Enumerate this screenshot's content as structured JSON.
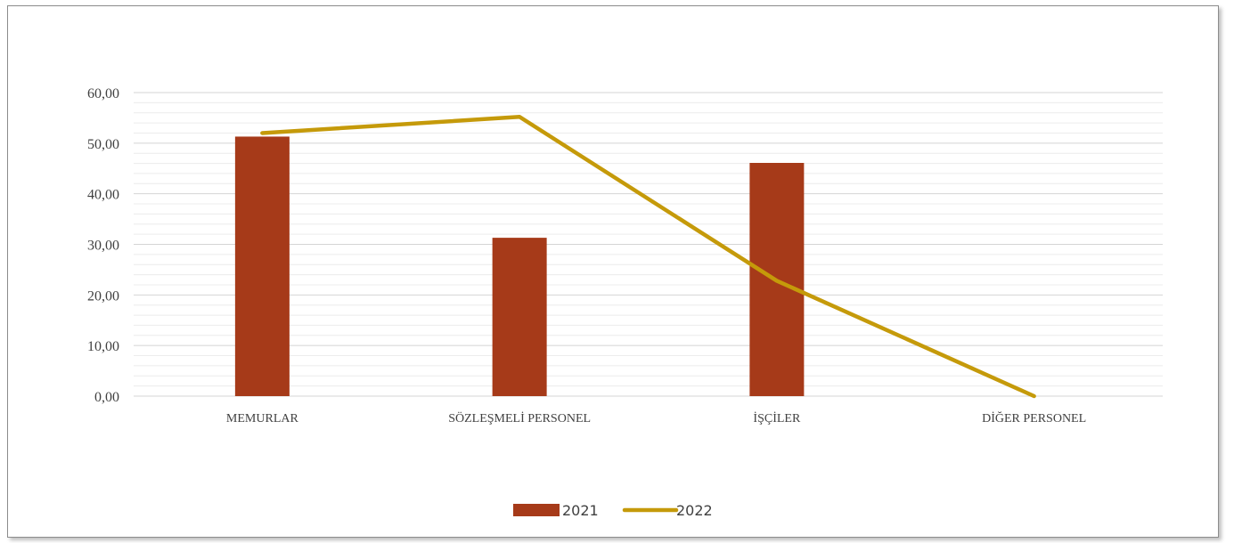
{
  "chart_data": {
    "type": "bar",
    "categories": [
      "MEMURLAR",
      "SÖZLEŞMELİ PERSONEL",
      "İŞÇİLER",
      "DİĞER PERSONEL"
    ],
    "series": [
      {
        "name": "2021",
        "kind": "bar",
        "color": "#a63a19",
        "values": [
          51.3,
          31.3,
          46.1,
          0
        ]
      },
      {
        "name": "2022",
        "kind": "line",
        "color": "#c59a0a",
        "values": [
          52.0,
          55.2,
          22.8,
          0
        ]
      }
    ],
    "ylim": [
      0,
      60
    ],
    "yticks": [
      "0,00",
      "10,00",
      "20,00",
      "30,00",
      "40,00",
      "50,00",
      "60,00"
    ],
    "grid": true,
    "legend_position": "bottom",
    "title": "",
    "xlabel": "",
    "ylabel": ""
  }
}
